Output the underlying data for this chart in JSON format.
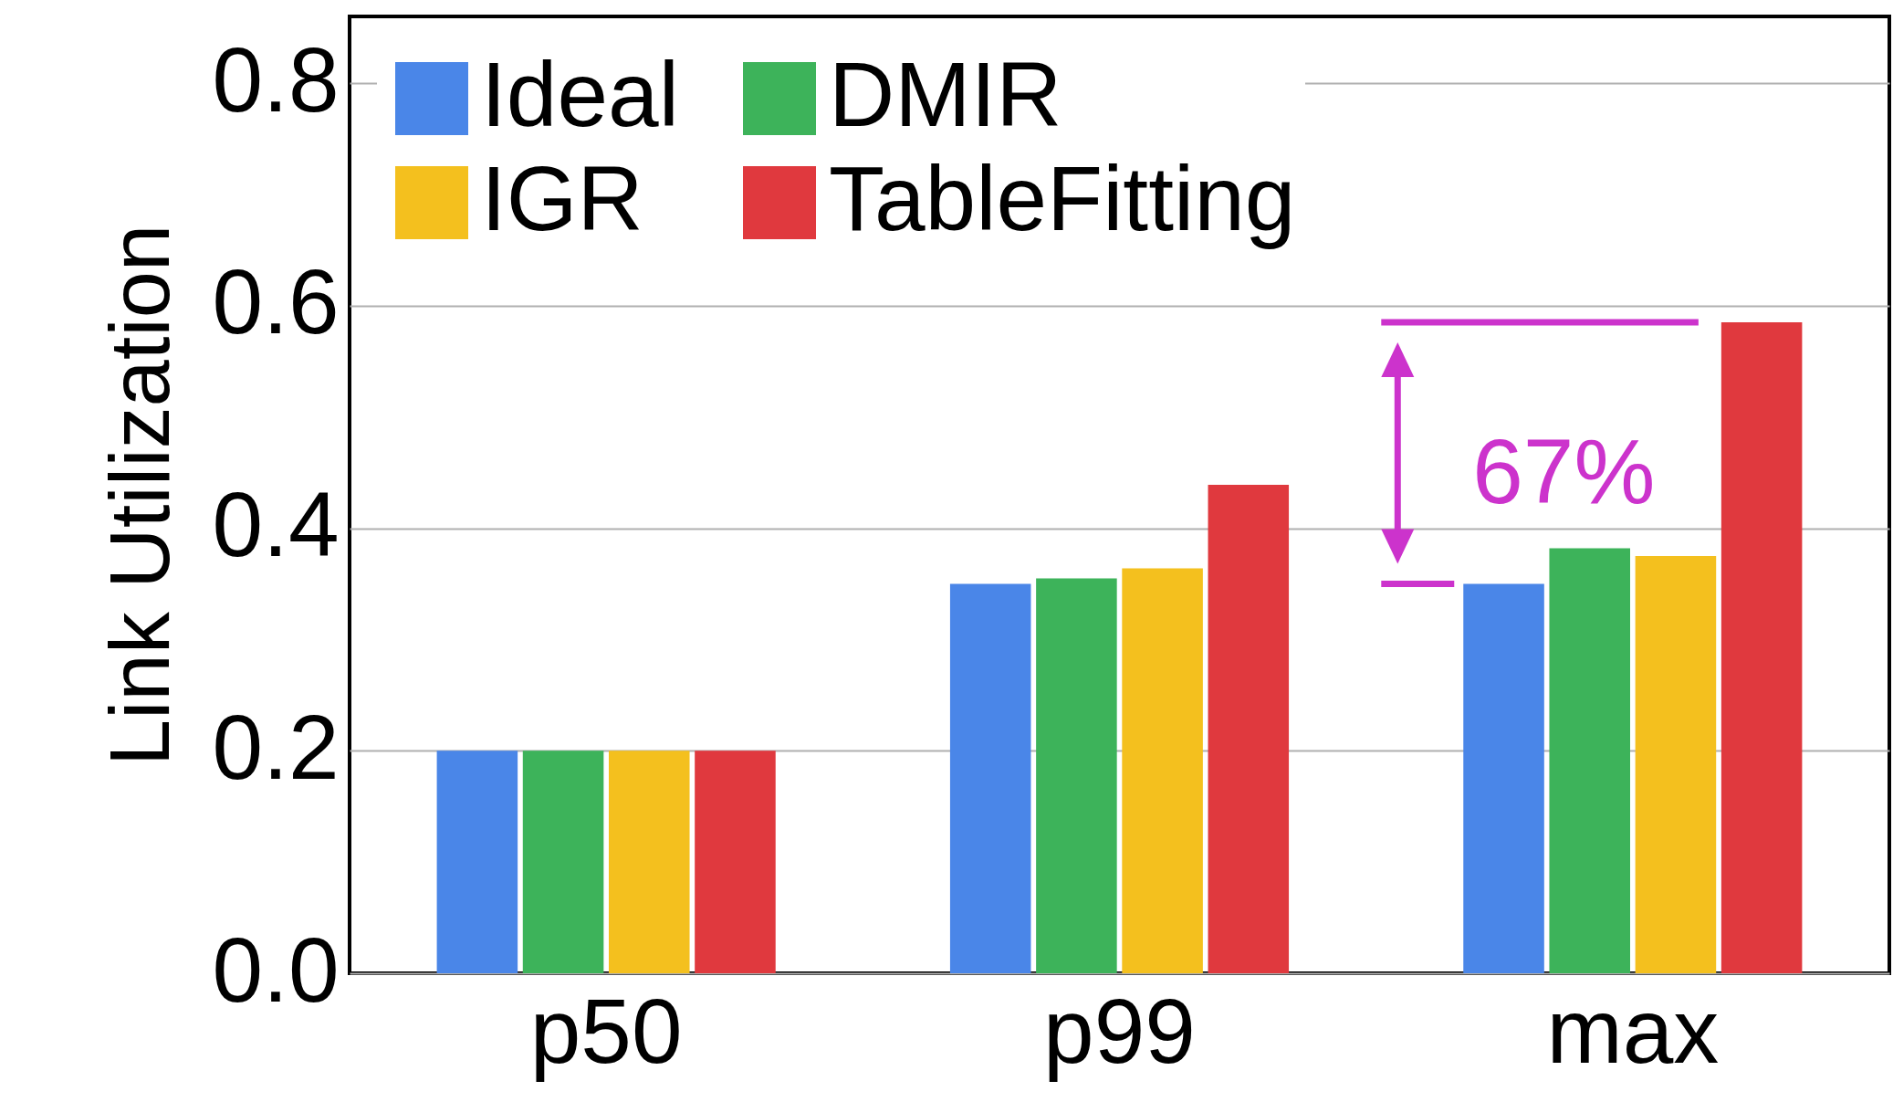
{
  "chart_data": {
    "type": "bar",
    "ylabel": "Link Utilization",
    "categories": [
      "p50",
      "p99",
      "max"
    ],
    "series": [
      {
        "name": "Ideal",
        "color": "#4a86e8",
        "values": [
          0.2,
          0.35,
          0.35
        ]
      },
      {
        "name": "DMIR",
        "color": "#3db35a",
        "values": [
          0.2,
          0.355,
          0.382
        ]
      },
      {
        "name": "IGR",
        "color": "#f4c01e",
        "values": [
          0.2,
          0.364,
          0.375
        ]
      },
      {
        "name": "TableFitting",
        "color": "#e0393e",
        "values": [
          0.2,
          0.439,
          0.585
        ]
      }
    ],
    "ylim": [
      0,
      0.86
    ],
    "yticks": [
      {
        "value": 0,
        "label": "0.0"
      },
      0.2,
      0.4,
      0.6,
      0.8
    ],
    "grid": "y",
    "legend": "top left",
    "annotations": [
      "67%"
    ]
  }
}
